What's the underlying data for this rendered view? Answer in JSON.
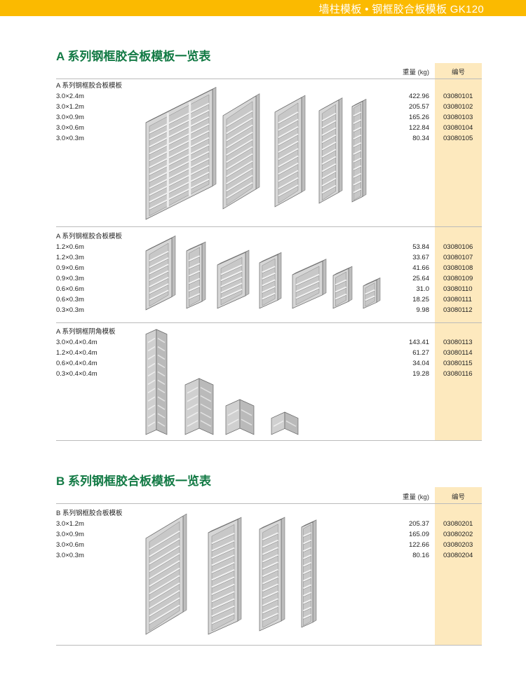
{
  "header": {
    "title": "墙柱模板 • 钢框胶合板模板 GK120",
    "color": "#FBBA00"
  },
  "columns": {
    "weight": "重量 (kg)",
    "code": "编号"
  },
  "sections": [
    {
      "title": "A 系列钢框胶合板模板一览表",
      "groups": [
        {
          "name": "A 系列钢框胶合板模板",
          "rows": [
            {
              "size": "3.0×2.4m",
              "weight": "422.96",
              "code": "03080101"
            },
            {
              "size": "3.0×1.2m",
              "weight": "205.57",
              "code": "03080102"
            },
            {
              "size": "3.0×0.9m",
              "weight": "165.26",
              "code": "03080103"
            },
            {
              "size": "3.0×0.6m",
              "weight": "122.84",
              "code": "03080104"
            },
            {
              "size": "3.0×0.3m",
              "weight": "80.34",
              "code": "03080105"
            }
          ]
        },
        {
          "name": "A 系列钢框胶合板模板",
          "rows": [
            {
              "size": "1.2×0.6m",
              "weight": "53.84",
              "code": "03080106"
            },
            {
              "size": "1.2×0.3m",
              "weight": "33.67",
              "code": "03080107"
            },
            {
              "size": "0.9×0.6m",
              "weight": "41.66",
              "code": "03080108"
            },
            {
              "size": "0.9×0.3m",
              "weight": "25.64",
              "code": "03080109"
            },
            {
              "size": "0.6×0.6m",
              "weight": "31.0",
              "code": "03080110"
            },
            {
              "size": "0.6×0.3m",
              "weight": "18.25",
              "code": "03080111"
            },
            {
              "size": "0.3×0.3m",
              "weight": "9.98",
              "code": "03080112"
            }
          ]
        },
        {
          "name": "A 系列钢框阴角模板",
          "rows": [
            {
              "size": "3.0×0.4×0.4m",
              "weight": "143.41",
              "code": "03080113"
            },
            {
              "size": "1.2×0.4×0.4m",
              "weight": "61.27",
              "code": "03080114"
            },
            {
              "size": "0.6×0.4×0.4m",
              "weight": "34.04",
              "code": "03080115"
            },
            {
              "size": "0.3×0.4×0.4m",
              "weight": "19.28",
              "code": "03080116"
            }
          ]
        }
      ]
    },
    {
      "title": "B 系列钢框胶合板模板一览表",
      "groups": [
        {
          "name": "B 系列钢框胶合板模板",
          "rows": [
            {
              "size": "3.0×1.2m",
              "weight": "205.37",
              "code": "03080201"
            },
            {
              "size": "3.0×0.9m",
              "weight": "165.09",
              "code": "03080202"
            },
            {
              "size": "3.0×0.6m",
              "weight": "122.66",
              "code": "03080203"
            },
            {
              "size": "3.0×0.3m",
              "weight": "80.16",
              "code": "03080204"
            }
          ]
        }
      ]
    }
  ],
  "colors": {
    "title_green": "#137a45",
    "code_column": "#FDE9BE"
  }
}
